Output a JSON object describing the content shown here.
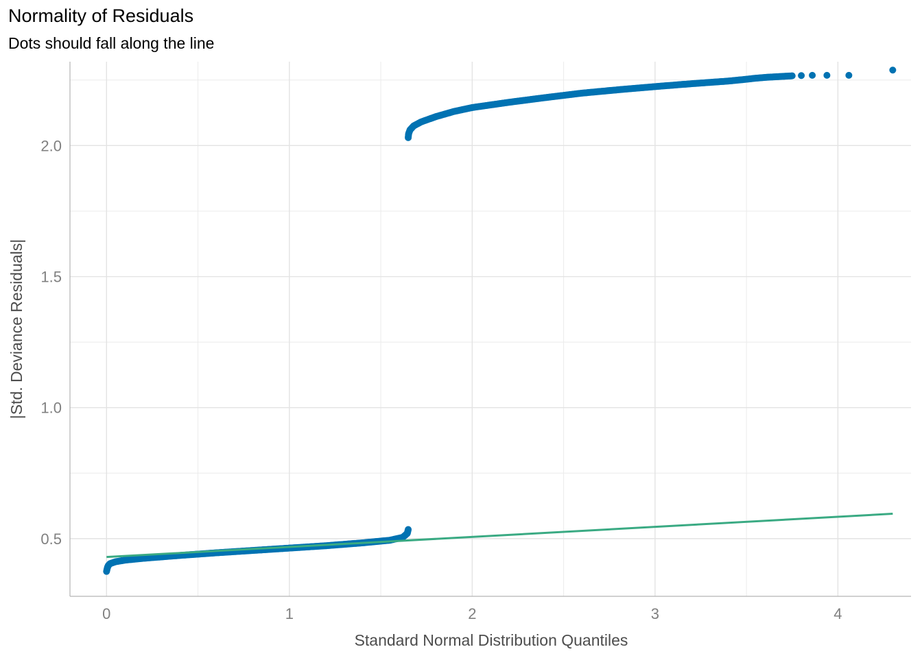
{
  "chart_data": {
    "type": "scatter",
    "title": "Normality of Residuals",
    "subtitle": "Dots should fall along the line",
    "xlabel": "Standard Normal Distribution Quantiles",
    "ylabel": "|Std. Deviance Residuals|",
    "xlim": [
      -0.2,
      4.4
    ],
    "ylim": [
      0.28,
      2.32
    ],
    "x_ticks": [
      0,
      1,
      2,
      3,
      4
    ],
    "x_tick_labels": [
      "0",
      "1",
      "2",
      "3",
      "4"
    ],
    "y_ticks": [
      0.5,
      1.0,
      1.5,
      2.0
    ],
    "y_tick_labels": [
      "0.5",
      "1.0",
      "1.5",
      "2.0"
    ],
    "grid": true,
    "reference_line": {
      "name": "",
      "color": "#3aaa83",
      "points": [
        [
          0.0,
          0.43
        ],
        [
          4.3,
          0.595
        ]
      ]
    },
    "series": [
      {
        "name": "",
        "color": "#0072b2",
        "segments": [
          {
            "points": [
              [
                0.0,
                0.375
              ],
              [
                0.005,
                0.39
              ],
              [
                0.01,
                0.398
              ],
              [
                0.02,
                0.405
              ],
              [
                0.05,
                0.412
              ],
              [
                0.1,
                0.418
              ],
              [
                0.2,
                0.425
              ],
              [
                0.4,
                0.436
              ],
              [
                0.6,
                0.446
              ],
              [
                0.8,
                0.455
              ],
              [
                1.0,
                0.464
              ],
              [
                1.2,
                0.473
              ],
              [
                1.4,
                0.484
              ],
              [
                1.55,
                0.494
              ],
              [
                1.62,
                0.505
              ],
              [
                1.645,
                0.52
              ],
              [
                1.65,
                0.535
              ]
            ]
          },
          {
            "points": [
              [
                1.65,
                2.03
              ],
              [
                1.652,
                2.045
              ],
              [
                1.66,
                2.06
              ],
              [
                1.68,
                2.075
              ],
              [
                1.72,
                2.09
              ],
              [
                1.8,
                2.11
              ],
              [
                1.9,
                2.13
              ],
              [
                2.0,
                2.145
              ],
              [
                2.2,
                2.165
              ],
              [
                2.4,
                2.183
              ],
              [
                2.6,
                2.2
              ],
              [
                2.8,
                2.213
              ],
              [
                3.0,
                2.225
              ],
              [
                3.2,
                2.236
              ],
              [
                3.4,
                2.246
              ],
              [
                3.5,
                2.253
              ],
              [
                3.55,
                2.257
              ],
              [
                3.6,
                2.26
              ],
              [
                3.65,
                2.262
              ],
              [
                3.7,
                2.264
              ],
              [
                3.75,
                2.266
              ],
              [
                3.8,
                2.267
              ],
              [
                3.86,
                2.268
              ],
              [
                3.94,
                2.268
              ],
              [
                4.06,
                2.268
              ],
              [
                4.3,
                2.288
              ]
            ]
          }
        ]
      }
    ]
  }
}
